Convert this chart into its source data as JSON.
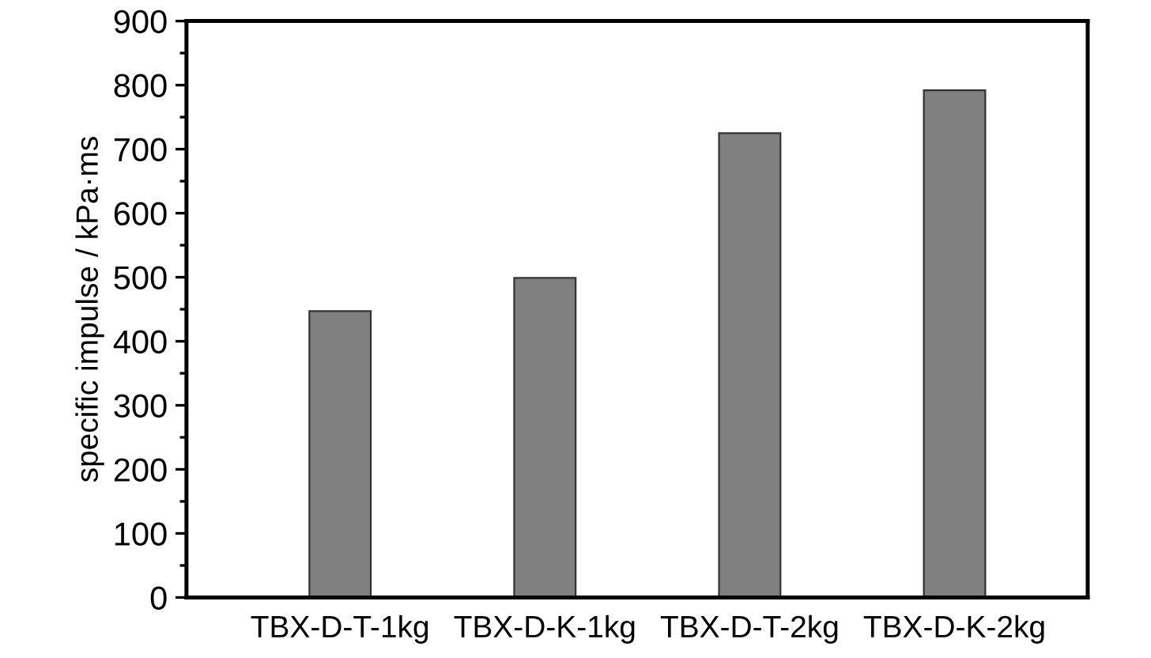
{
  "chart_data": {
    "type": "bar",
    "ylabel": "specific impulse / kPa·ms",
    "categories": [
      "TBX-D-T-1kg",
      "TBX-D-K-1kg",
      "TBX-D-T-2kg",
      "TBX-D-K-2kg"
    ],
    "values": [
      447,
      499,
      725,
      792
    ],
    "color": "#808080",
    "ylim": [
      0,
      900
    ],
    "yticks": [
      0,
      100,
      200,
      300,
      400,
      500,
      600,
      700,
      800,
      900
    ],
    "grid": false,
    "legend": false
  }
}
